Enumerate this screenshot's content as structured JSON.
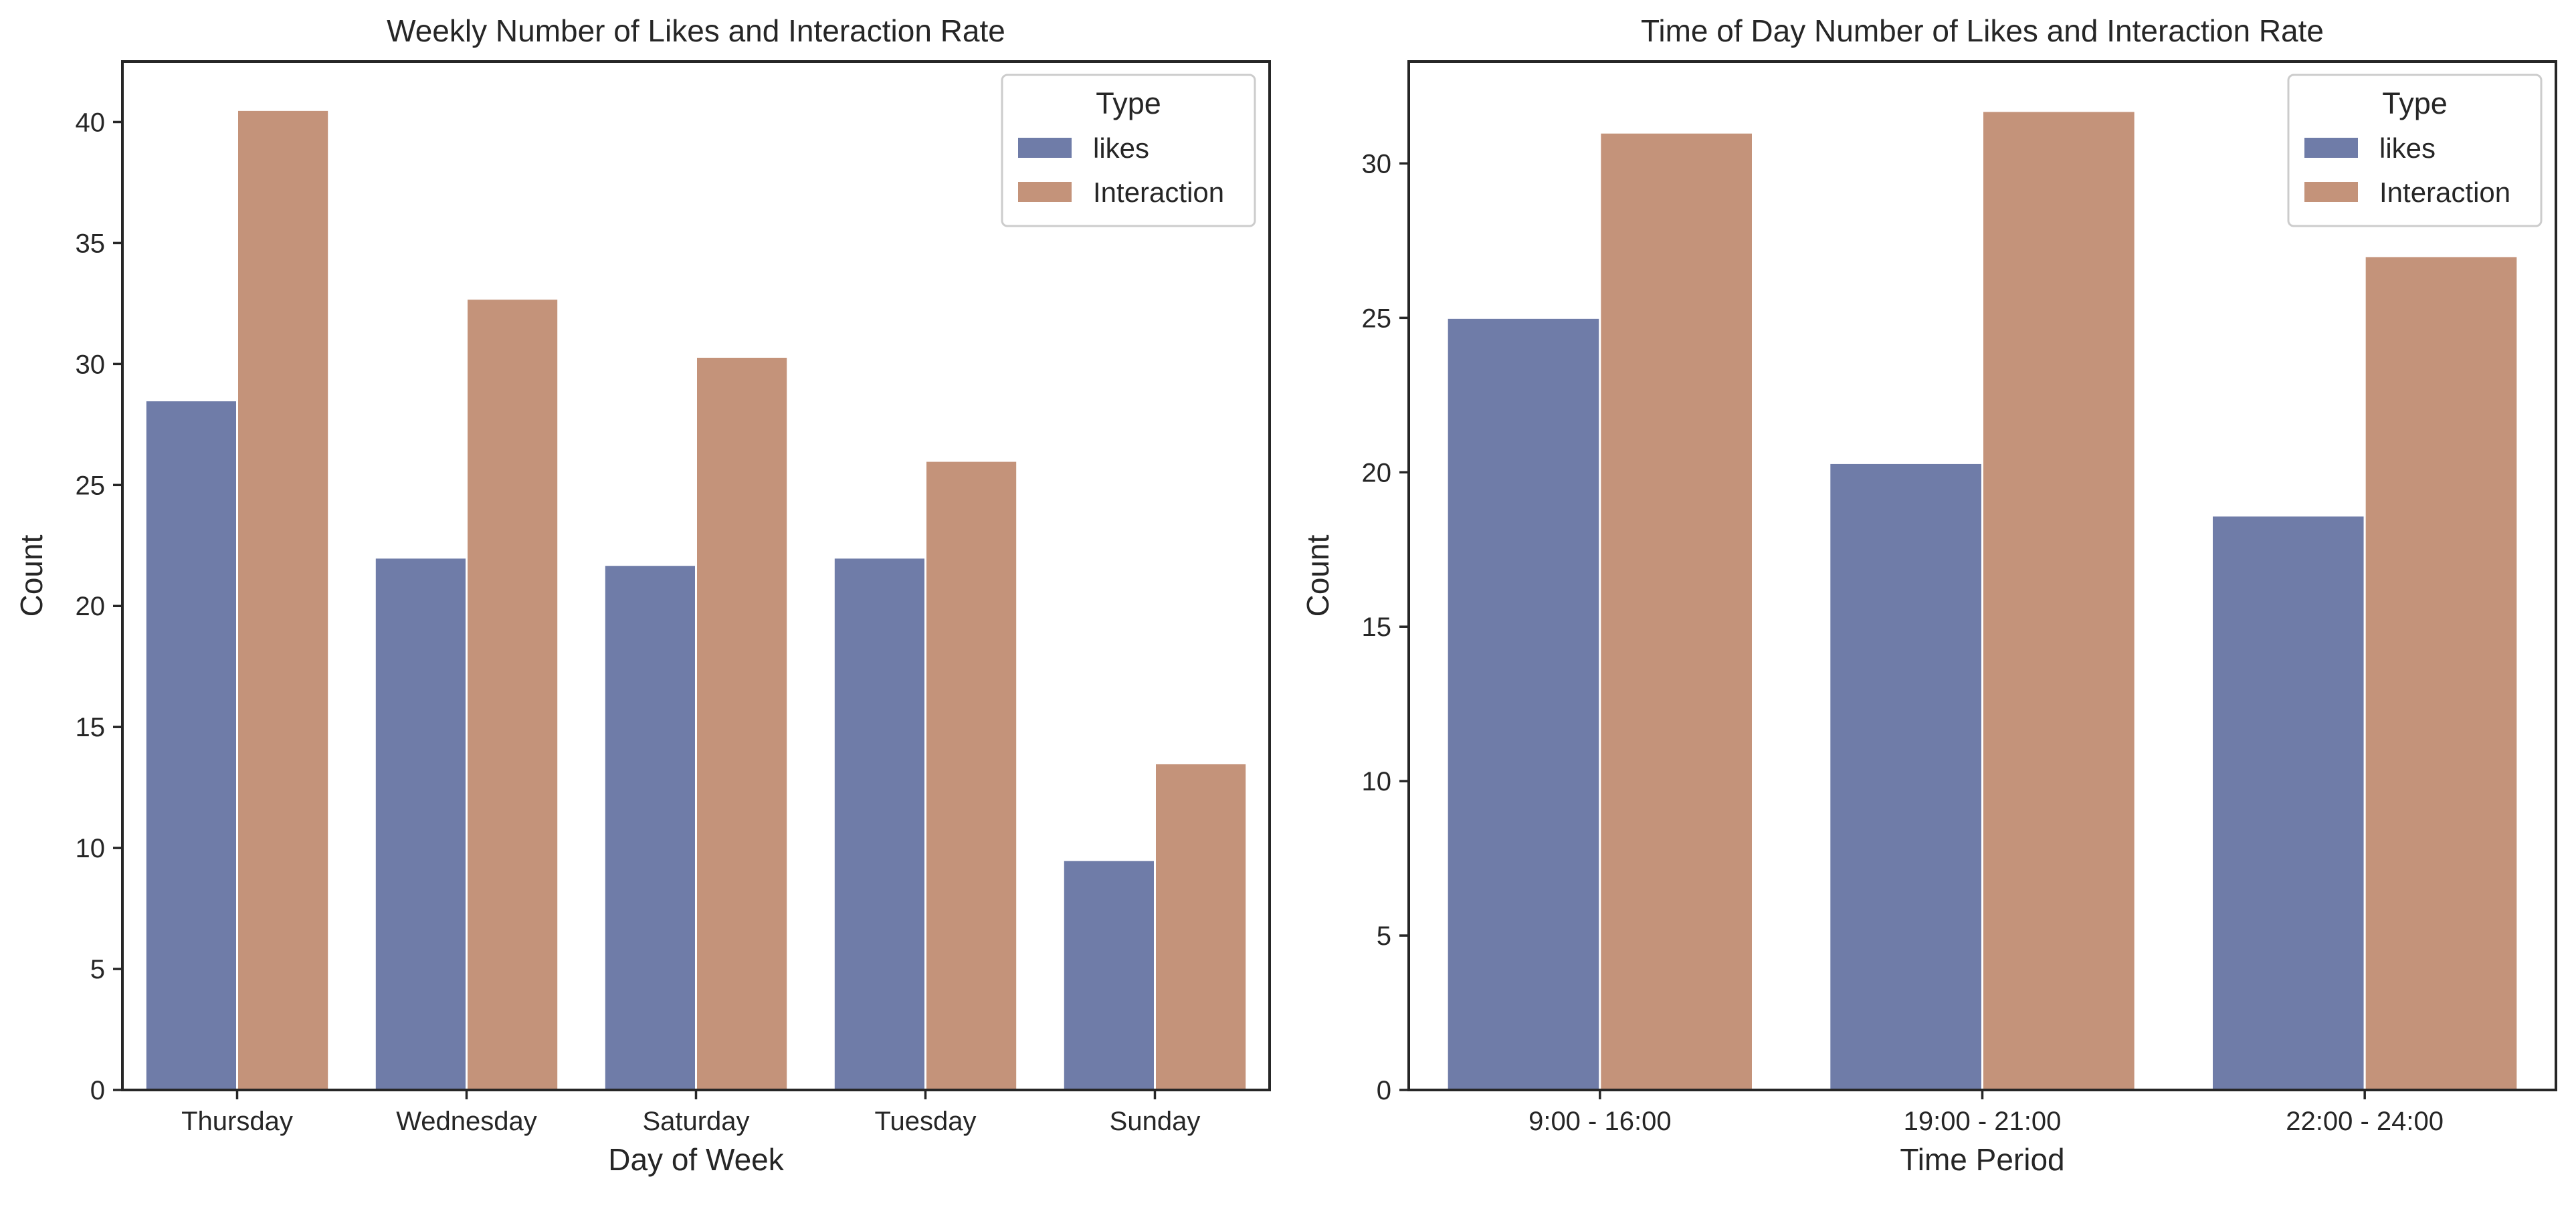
{
  "chart_data": [
    {
      "type": "bar",
      "title": "Weekly Number of Likes and Interaction Rate",
      "xlabel": "Day of Week",
      "ylabel": "Count",
      "categories": [
        "Thursday",
        "Wednesday",
        "Saturday",
        "Tuesday",
        "Sunday"
      ],
      "series": [
        {
          "name": "likes",
          "values": [
            28.5,
            22.0,
            21.7,
            22.0,
            9.5
          ]
        },
        {
          "name": "Interaction",
          "values": [
            40.5,
            32.7,
            30.3,
            26.0,
            13.5
          ]
        }
      ],
      "ylim": [
        0,
        42.5
      ],
      "yticks": [
        0,
        5,
        10,
        15,
        20,
        25,
        30,
        35,
        40
      ],
      "legend": {
        "title": "Type",
        "position": "top-right"
      },
      "grid": false
    },
    {
      "type": "bar",
      "title": "Time of Day Number of Likes and Interaction Rate",
      "xlabel": "Time Period",
      "ylabel": "Count",
      "categories": [
        "9:00 - 16:00",
        "19:00 - 21:00",
        "22:00 - 24:00"
      ],
      "series": [
        {
          "name": "likes",
          "values": [
            25.0,
            20.3,
            18.6
          ]
        },
        {
          "name": "Interaction",
          "values": [
            31.0,
            31.7,
            27.0
          ]
        }
      ],
      "ylim": [
        0,
        33.3
      ],
      "yticks": [
        0,
        5,
        10,
        15,
        20,
        25,
        30
      ],
      "legend": {
        "title": "Type",
        "position": "top-right"
      },
      "grid": false
    }
  ],
  "colors": {
    "likes": "#6f7ca8",
    "Interaction": "#c4937a",
    "axis": "#262626"
  }
}
